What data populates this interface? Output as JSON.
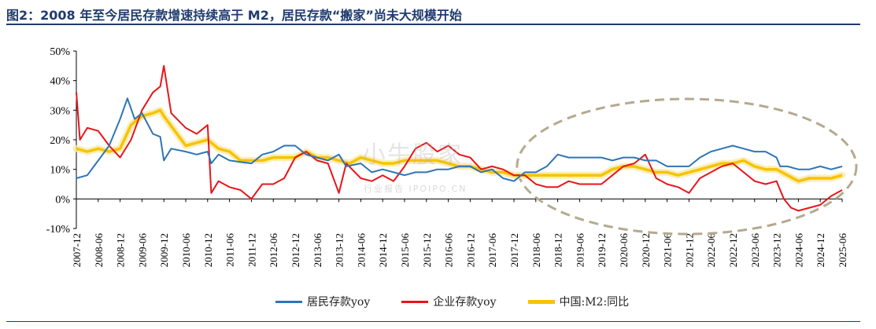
{
  "title": "图2：2008 年至今居民存款增速持续高于 M2，居民存款“搬家”尚未大规模开始",
  "watermark": "小牛股家",
  "watermark_sub": "行业报告 IPOIPO.CN",
  "colors": {
    "resident": "#2e75b6",
    "enterprise": "#e8151b",
    "m2": "#f5c400",
    "title": "#1f3b6e",
    "ellipse": "#b5aa8f"
  },
  "chart_data": {
    "type": "line",
    "title": "",
    "xlabel": "",
    "ylabel": "",
    "ylim": [
      -10,
      50
    ],
    "yticks": [
      -10,
      0,
      10,
      20,
      30,
      40,
      50
    ],
    "ytick_labels": [
      "-10%",
      "0%",
      "10%",
      "20%",
      "30%",
      "40%",
      "50%"
    ],
    "xticks": [
      "2007-12",
      "2008-06",
      "2008-12",
      "2009-06",
      "2009-12",
      "2010-06",
      "2010-12",
      "2011-06",
      "2011-12",
      "2012-06",
      "2012-12",
      "2013-06",
      "2013-12",
      "2014-06",
      "2014-12",
      "2015-06",
      "2015-12",
      "2016-06",
      "2016-12",
      "2017-06",
      "2017-12",
      "2018-06",
      "2018-12",
      "2019-06",
      "2019-12",
      "2020-06",
      "2020-12",
      "2021-06",
      "2021-12",
      "2022-06",
      "2022-12",
      "2023-06",
      "2023-12",
      "2024-06",
      "2024-12",
      "2025-06"
    ],
    "grid": false,
    "legend": "bottom",
    "annotation": "dashed ellipse highlighting 2018-06 to 2025-06",
    "series": [
      {
        "name": "居民存款yoy",
        "key": "resident",
        "points": [
          [
            "2007-12",
            7
          ],
          [
            "2008-03",
            8
          ],
          [
            "2008-06",
            13
          ],
          [
            "2008-09",
            18
          ],
          [
            "2008-12",
            27
          ],
          [
            "2009-02",
            34
          ],
          [
            "2009-04",
            27
          ],
          [
            "2009-06",
            29
          ],
          [
            "2009-09",
            22
          ],
          [
            "2009-11",
            21
          ],
          [
            "2009-12",
            13
          ],
          [
            "2010-02",
            17
          ],
          [
            "2010-06",
            16
          ],
          [
            "2010-09",
            15
          ],
          [
            "2010-12",
            16
          ],
          [
            "2011-01",
            12
          ],
          [
            "2011-03",
            15
          ],
          [
            "2011-06",
            13
          ],
          [
            "2011-12",
            12
          ],
          [
            "2012-03",
            15
          ],
          [
            "2012-06",
            16
          ],
          [
            "2012-09",
            18
          ],
          [
            "2012-12",
            18
          ],
          [
            "2013-03",
            15
          ],
          [
            "2013-06",
            14
          ],
          [
            "2013-09",
            13
          ],
          [
            "2013-12",
            15
          ],
          [
            "2014-02",
            11
          ],
          [
            "2014-06",
            12
          ],
          [
            "2014-09",
            9
          ],
          [
            "2014-12",
            10
          ],
          [
            "2015-03",
            9
          ],
          [
            "2015-06",
            8
          ],
          [
            "2015-09",
            9
          ],
          [
            "2015-12",
            9
          ],
          [
            "2016-03",
            10
          ],
          [
            "2016-06",
            10
          ],
          [
            "2016-09",
            11
          ],
          [
            "2016-12",
            11
          ],
          [
            "2017-03",
            9
          ],
          [
            "2017-06",
            10
          ],
          [
            "2017-09",
            7
          ],
          [
            "2017-12",
            6
          ],
          [
            "2018-03",
            9
          ],
          [
            "2018-06",
            9
          ],
          [
            "2018-09",
            11
          ],
          [
            "2018-12",
            15
          ],
          [
            "2019-03",
            14
          ],
          [
            "2019-06",
            14
          ],
          [
            "2019-09",
            14
          ],
          [
            "2019-12",
            14
          ],
          [
            "2020-03",
            13
          ],
          [
            "2020-06",
            14
          ],
          [
            "2020-09",
            14
          ],
          [
            "2020-12",
            13
          ],
          [
            "2021-03",
            13
          ],
          [
            "2021-06",
            11
          ],
          [
            "2021-09",
            11
          ],
          [
            "2021-12",
            11
          ],
          [
            "2022-03",
            14
          ],
          [
            "2022-06",
            16
          ],
          [
            "2022-09",
            17
          ],
          [
            "2022-12",
            18
          ],
          [
            "2023-03",
            17
          ],
          [
            "2023-06",
            16
          ],
          [
            "2023-09",
            16
          ],
          [
            "2023-12",
            14
          ],
          [
            "2024-01",
            11
          ],
          [
            "2024-03",
            11
          ],
          [
            "2024-06",
            10
          ],
          [
            "2024-09",
            10
          ],
          [
            "2024-12",
            11
          ],
          [
            "2025-03",
            10
          ],
          [
            "2025-06",
            11
          ]
        ]
      },
      {
        "name": "企业存款yoy",
        "key": "enterprise",
        "points": [
          [
            "2007-12",
            36
          ],
          [
            "2008-01",
            20
          ],
          [
            "2008-03",
            24
          ],
          [
            "2008-06",
            23
          ],
          [
            "2008-09",
            18
          ],
          [
            "2008-12",
            14
          ],
          [
            "2009-03",
            20
          ],
          [
            "2009-06",
            30
          ],
          [
            "2009-09",
            36
          ],
          [
            "2009-11",
            38
          ],
          [
            "2009-12",
            45
          ],
          [
            "2010-02",
            29
          ],
          [
            "2010-06",
            24
          ],
          [
            "2010-09",
            22
          ],
          [
            "2010-12",
            25
          ],
          [
            "2011-01",
            2
          ],
          [
            "2011-03",
            6
          ],
          [
            "2011-06",
            4
          ],
          [
            "2011-09",
            3
          ],
          [
            "2011-12",
            0
          ],
          [
            "2012-03",
            5
          ],
          [
            "2012-06",
            5
          ],
          [
            "2012-09",
            7
          ],
          [
            "2012-12",
            14
          ],
          [
            "2013-03",
            16
          ],
          [
            "2013-06",
            13
          ],
          [
            "2013-09",
            12
          ],
          [
            "2013-12",
            2
          ],
          [
            "2014-02",
            12
          ],
          [
            "2014-06",
            7
          ],
          [
            "2014-09",
            6
          ],
          [
            "2014-12",
            8
          ],
          [
            "2015-03",
            6
          ],
          [
            "2015-06",
            11
          ],
          [
            "2015-09",
            17
          ],
          [
            "2015-12",
            19
          ],
          [
            "2016-03",
            16
          ],
          [
            "2016-06",
            18
          ],
          [
            "2016-09",
            15
          ],
          [
            "2016-12",
            14
          ],
          [
            "2017-03",
            10
          ],
          [
            "2017-06",
            11
          ],
          [
            "2017-09",
            10
          ],
          [
            "2017-12",
            8
          ],
          [
            "2018-03",
            8
          ],
          [
            "2018-06",
            5
          ],
          [
            "2018-09",
            4
          ],
          [
            "2018-12",
            4
          ],
          [
            "2019-03",
            6
          ],
          [
            "2019-06",
            5
          ],
          [
            "2019-09",
            5
          ],
          [
            "2019-12",
            5
          ],
          [
            "2020-03",
            8
          ],
          [
            "2020-06",
            11
          ],
          [
            "2020-09",
            12
          ],
          [
            "2020-12",
            15
          ],
          [
            "2021-03",
            7
          ],
          [
            "2021-06",
            5
          ],
          [
            "2021-09",
            4
          ],
          [
            "2021-12",
            2
          ],
          [
            "2022-03",
            7
          ],
          [
            "2022-06",
            9
          ],
          [
            "2022-09",
            11
          ],
          [
            "2022-12",
            12
          ],
          [
            "2023-03",
            9
          ],
          [
            "2023-06",
            6
          ],
          [
            "2023-09",
            5
          ],
          [
            "2023-12",
            6
          ],
          [
            "2024-02",
            0
          ],
          [
            "2024-04",
            -3
          ],
          [
            "2024-06",
            -4
          ],
          [
            "2024-09",
            -3
          ],
          [
            "2024-12",
            -2
          ],
          [
            "2025-03",
            1
          ],
          [
            "2025-06",
            3
          ]
        ]
      },
      {
        "name": "中国:M2:同比",
        "key": "m2",
        "points": [
          [
            "2007-12",
            17
          ],
          [
            "2008-03",
            16
          ],
          [
            "2008-06",
            17
          ],
          [
            "2008-09",
            16
          ],
          [
            "2008-12",
            17
          ],
          [
            "2009-03",
            25
          ],
          [
            "2009-06",
            28
          ],
          [
            "2009-09",
            29
          ],
          [
            "2009-11",
            30
          ],
          [
            "2009-12",
            28
          ],
          [
            "2010-03",
            23
          ],
          [
            "2010-06",
            18
          ],
          [
            "2010-09",
            19
          ],
          [
            "2010-12",
            20
          ],
          [
            "2011-03",
            17
          ],
          [
            "2011-06",
            16
          ],
          [
            "2011-09",
            13
          ],
          [
            "2011-12",
            13
          ],
          [
            "2012-03",
            13
          ],
          [
            "2012-06",
            14
          ],
          [
            "2012-09",
            14
          ],
          [
            "2012-12",
            14
          ],
          [
            "2013-03",
            16
          ],
          [
            "2013-06",
            14
          ],
          [
            "2013-09",
            14
          ],
          [
            "2013-12",
            13
          ],
          [
            "2014-03",
            12
          ],
          [
            "2014-06",
            14
          ],
          [
            "2014-09",
            13
          ],
          [
            "2014-12",
            12
          ],
          [
            "2015-03",
            12
          ],
          [
            "2015-06",
            13
          ],
          [
            "2015-09",
            13
          ],
          [
            "2015-12",
            13
          ],
          [
            "2016-03",
            13
          ],
          [
            "2016-06",
            12
          ],
          [
            "2016-09",
            11
          ],
          [
            "2016-12",
            11
          ],
          [
            "2017-03",
            10
          ],
          [
            "2017-06",
            9
          ],
          [
            "2017-09",
            9
          ],
          [
            "2017-12",
            8
          ],
          [
            "2018-03",
            8
          ],
          [
            "2018-06",
            8
          ],
          [
            "2018-09",
            8
          ],
          [
            "2018-12",
            8
          ],
          [
            "2019-03",
            8
          ],
          [
            "2019-06",
            8
          ],
          [
            "2019-09",
            8
          ],
          [
            "2019-12",
            8
          ],
          [
            "2020-03",
            10
          ],
          [
            "2020-06",
            11
          ],
          [
            "2020-09",
            11
          ],
          [
            "2020-12",
            10
          ],
          [
            "2021-03",
            9
          ],
          [
            "2021-06",
            9
          ],
          [
            "2021-09",
            8
          ],
          [
            "2021-12",
            9
          ],
          [
            "2022-03",
            10
          ],
          [
            "2022-06",
            11
          ],
          [
            "2022-09",
            12
          ],
          [
            "2022-12",
            12
          ],
          [
            "2023-03",
            13
          ],
          [
            "2023-06",
            11
          ],
          [
            "2023-09",
            10
          ],
          [
            "2023-12",
            10
          ],
          [
            "2024-03",
            8
          ],
          [
            "2024-06",
            6
          ],
          [
            "2024-09",
            7
          ],
          [
            "2024-12",
            7
          ],
          [
            "2025-03",
            7
          ],
          [
            "2025-06",
            8
          ]
        ]
      }
    ]
  }
}
